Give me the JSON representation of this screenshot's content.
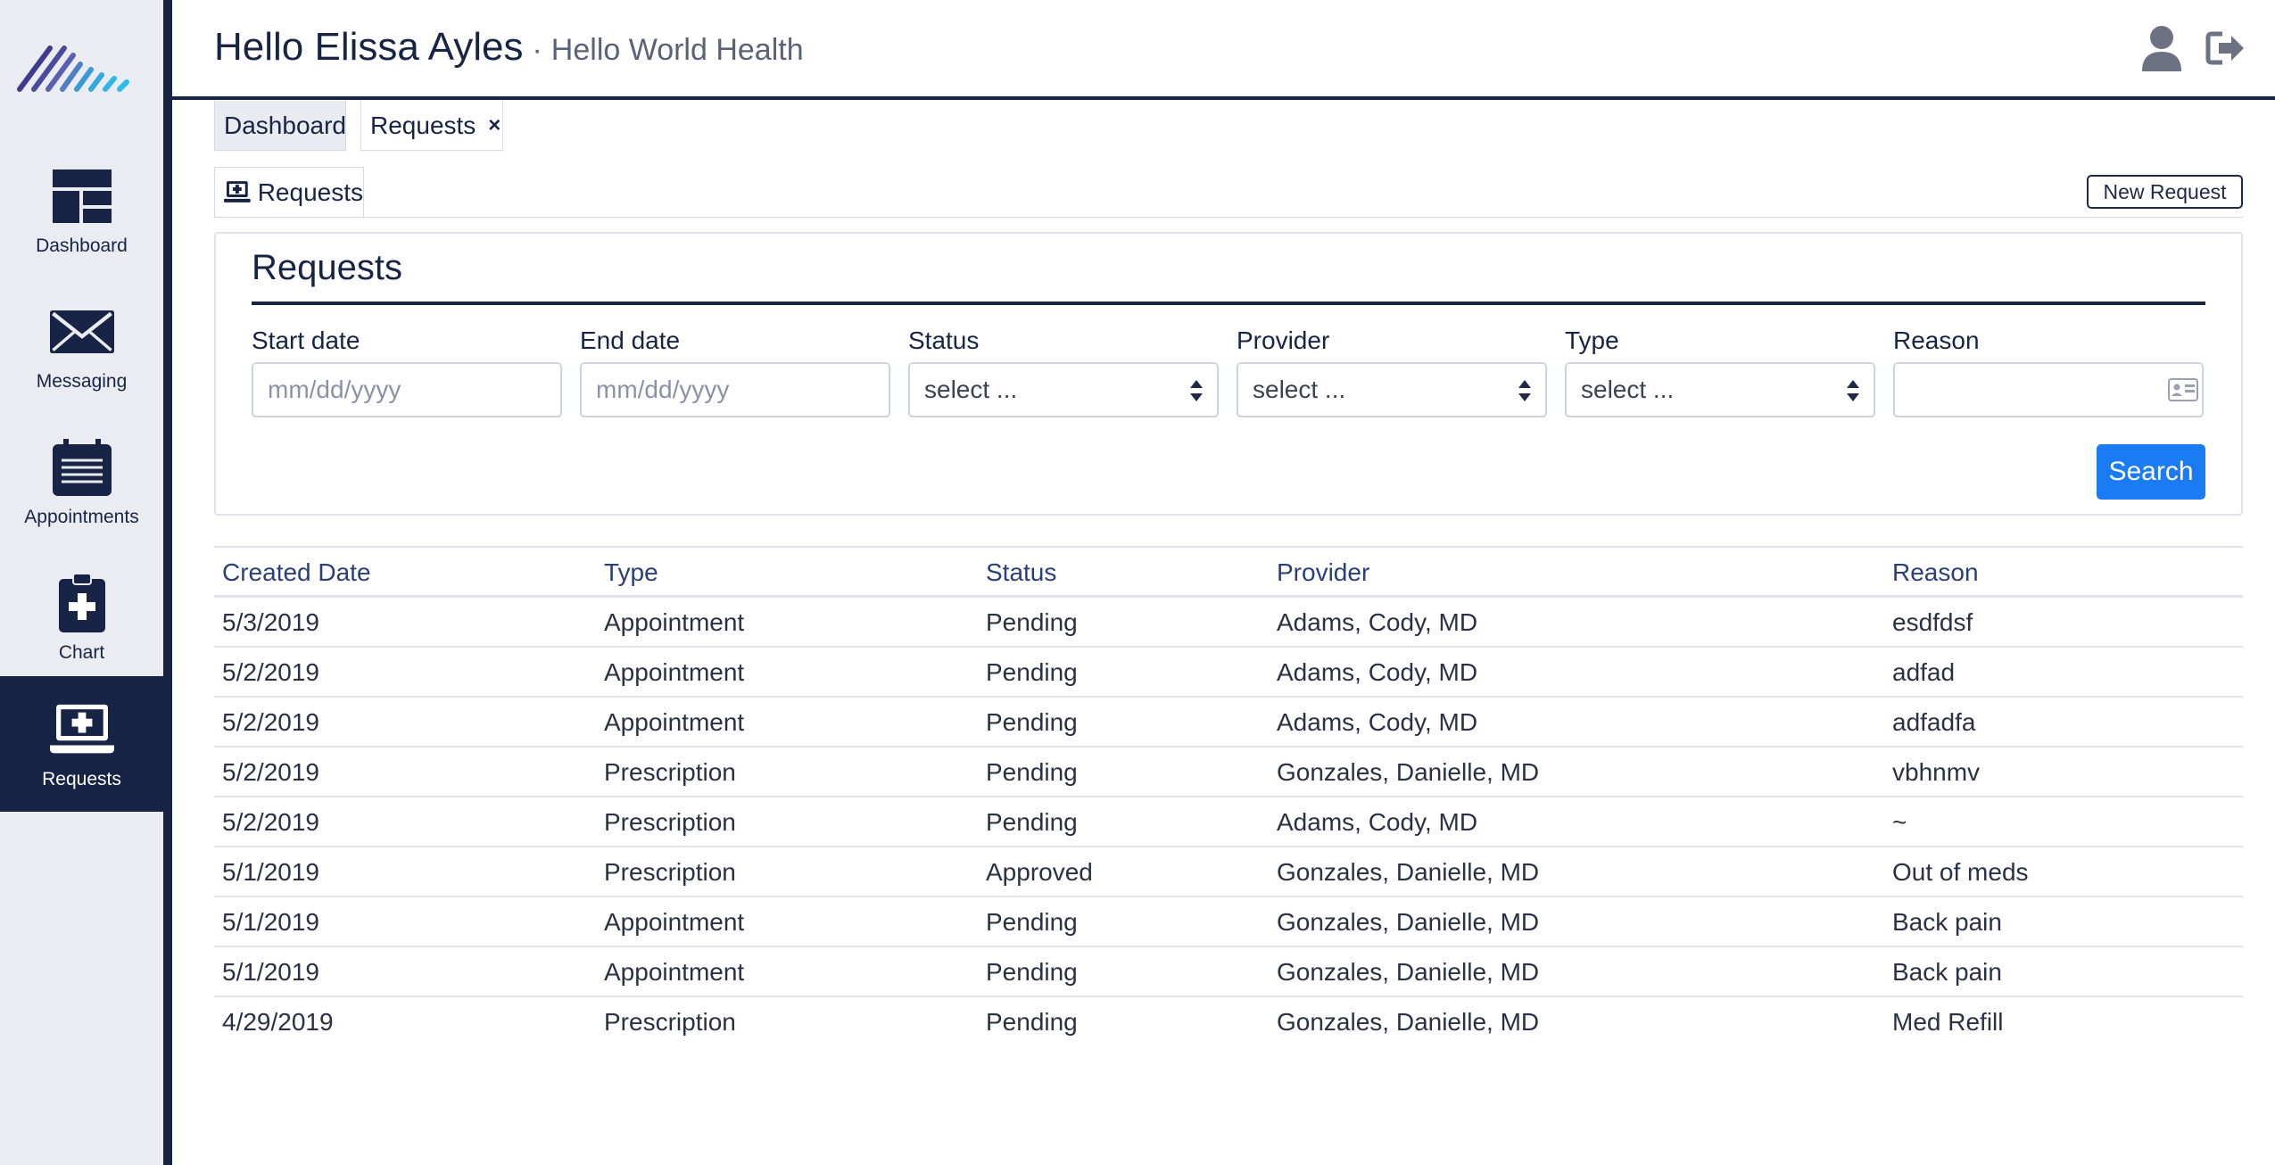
{
  "sidebar": {
    "items": [
      {
        "label": "Dashboard",
        "icon": "dashboard-icon"
      },
      {
        "label": "Messaging",
        "icon": "envelope-icon"
      },
      {
        "label": "Appointments",
        "icon": "calendar-icon"
      },
      {
        "label": "Chart",
        "icon": "clipboard-medical-icon"
      },
      {
        "label": "Requests",
        "icon": "laptop-medical-icon",
        "active": true
      }
    ]
  },
  "header": {
    "greeting": "Hello Elissa Ayles",
    "separator": "·",
    "organization": "Hello World Health",
    "icons": [
      "user-icon",
      "sign-out-icon"
    ]
  },
  "tabs": [
    {
      "label": "Dashboard"
    },
    {
      "label": "Requests",
      "close": "×"
    }
  ],
  "subtab": {
    "label": "Requests"
  },
  "new_request_label": "New Request",
  "filters": {
    "title": "Requests",
    "start_date": {
      "label": "Start date",
      "placeholder": "mm/dd/yyyy"
    },
    "end_date": {
      "label": "End date",
      "placeholder": "mm/dd/yyyy"
    },
    "status": {
      "label": "Status",
      "value": "select ..."
    },
    "provider": {
      "label": "Provider",
      "value": "select ..."
    },
    "type": {
      "label": "Type",
      "value": "select ..."
    },
    "reason": {
      "label": "Reason",
      "value": ""
    },
    "search_label": "Search"
  },
  "table": {
    "columns": [
      "Created Date",
      "Type",
      "Status",
      "Provider",
      "Reason"
    ],
    "rows": [
      [
        "5/3/2019",
        "Appointment",
        "Pending",
        "Adams, Cody, MD",
        "esdfdsf"
      ],
      [
        "5/2/2019",
        "Appointment",
        "Pending",
        "Adams, Cody, MD",
        "adfad"
      ],
      [
        "5/2/2019",
        "Appointment",
        "Pending",
        "Adams, Cody, MD",
        "adfadfa"
      ],
      [
        "5/2/2019",
        "Prescription",
        "Pending",
        "Gonzales, Danielle, MD",
        "vbhnmv"
      ],
      [
        "5/2/2019",
        "Prescription",
        "Pending",
        "Adams, Cody, MD",
        "~"
      ],
      [
        "5/1/2019",
        "Prescription",
        "Approved",
        "Gonzales, Danielle, MD",
        "Out of meds"
      ],
      [
        "5/1/2019",
        "Appointment",
        "Pending",
        "Gonzales, Danielle, MD",
        "Back pain"
      ],
      [
        "5/1/2019",
        "Appointment",
        "Pending",
        "Gonzales, Danielle, MD",
        "Back pain"
      ],
      [
        "4/29/2019",
        "Prescription",
        "Pending",
        "Gonzales, Danielle, MD",
        "Med Refill"
      ]
    ]
  },
  "colors": {
    "navy": "#182445",
    "accent": "#1a7bf2",
    "sidebar_bg": "#ebecf1"
  }
}
